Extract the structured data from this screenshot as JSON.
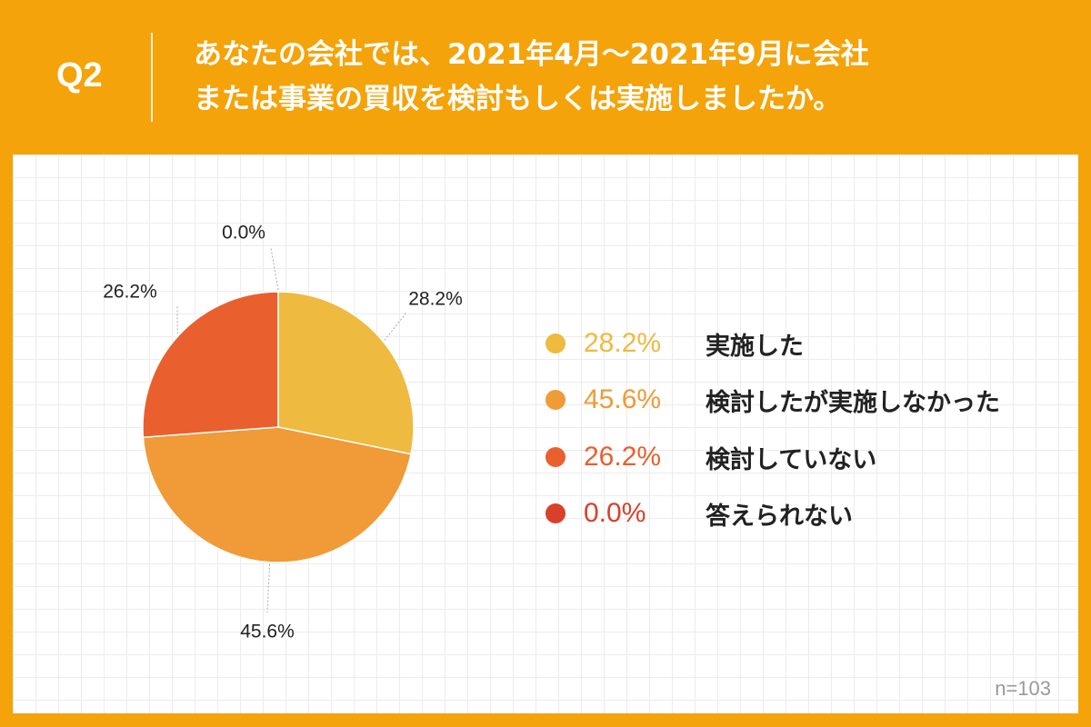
{
  "header": {
    "q_label": "Q2",
    "question_lines": [
      "あなたの会社では、2021年4月〜2021年9月に会社",
      "または事業の買収を検討もしくは実施しましたか。"
    ]
  },
  "chart_data": {
    "type": "pie",
    "title": "あなたの会社では、2021年4月〜2021年9月に会社または事業の買収を検討もしくは実施しましたか。",
    "slices": [
      {
        "label": "実施した",
        "value": 28.2,
        "value_text": "28.2%",
        "color": "#EEBA3F"
      },
      {
        "label": "検討したが実施しなかった",
        "value": 45.6,
        "value_text": "45.6%",
        "color": "#F09A38"
      },
      {
        "label": "検討していない",
        "value": 26.2,
        "value_text": "26.2%",
        "color": "#E9602E"
      },
      {
        "label": "答えられない",
        "value": 0.0,
        "value_text": "0.0%",
        "color": "#D9402A"
      }
    ],
    "start": "12 o'clock, clockwise",
    "legend_position": "right",
    "sample_size": "n=103"
  }
}
